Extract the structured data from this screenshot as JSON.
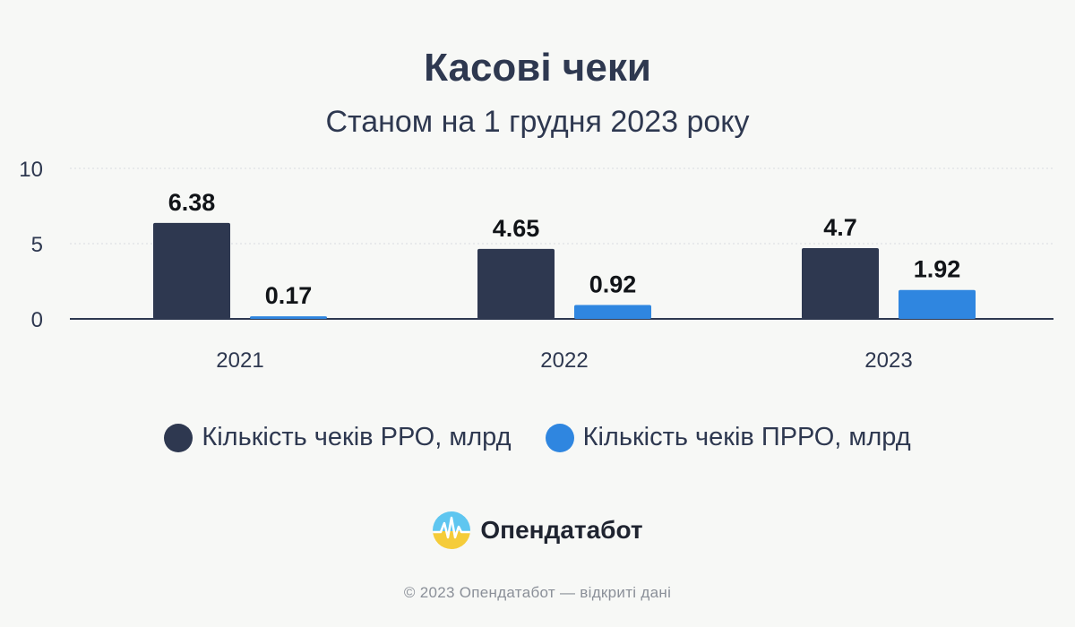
{
  "chart_data": {
    "type": "bar",
    "title": "Касові чеки",
    "subtitle": "Станом на 1 грудня 2023 року",
    "categories": [
      "2021",
      "2022",
      "2023"
    ],
    "series": [
      {
        "name": "Кількість чеків РРО, млрд",
        "values": [
          6.38,
          4.65,
          4.7
        ],
        "labels": [
          "6.38",
          "4.65",
          "4.7"
        ],
        "color": "#2e3850"
      },
      {
        "name": "Кількість чеків ПРРО, млрд",
        "values": [
          0.17,
          0.92,
          1.92
        ],
        "labels": [
          "0.17",
          "0.92",
          "1.92"
        ],
        "color": "#2f86e0"
      }
    ],
    "yticks": [
      "0",
      "5",
      "10"
    ],
    "ylim": [
      0,
      10
    ],
    "grid": true,
    "legend": "bottom"
  },
  "brand": {
    "name": "Опендатабот",
    "icon": "opendatabot-logo-icon"
  },
  "footer": "© 2023 Опендатабот — відкриті дані",
  "colors": {
    "background": "#f7f8f6",
    "text": "#2e3850",
    "grid": "#d8dbe0",
    "footer": "#8a8f98"
  }
}
